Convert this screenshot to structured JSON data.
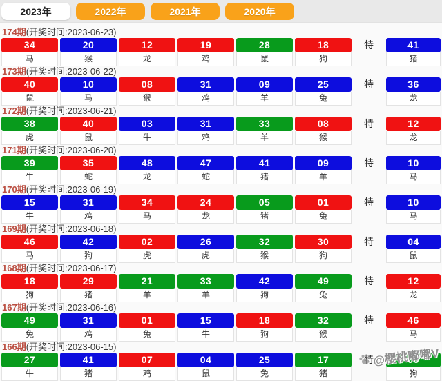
{
  "tabs": [
    {
      "label": "2023年",
      "active": true
    },
    {
      "label": "2022年",
      "active": false
    },
    {
      "label": "2021年",
      "active": false
    },
    {
      "label": "2020年",
      "active": false
    }
  ],
  "special_label": "特",
  "rows": [
    {
      "period": "174期",
      "time": "(开奖时间:2023-06-23)",
      "balls": [
        {
          "n": "34",
          "c": "red",
          "z": "马"
        },
        {
          "n": "20",
          "c": "blue",
          "z": "猴"
        },
        {
          "n": "12",
          "c": "red",
          "z": "龙"
        },
        {
          "n": "19",
          "c": "red",
          "z": "鸡"
        },
        {
          "n": "28",
          "c": "green",
          "z": "鼠"
        },
        {
          "n": "18",
          "c": "red",
          "z": "狗"
        }
      ],
      "special": {
        "n": "41",
        "c": "blue",
        "z": "猪"
      }
    },
    {
      "period": "173期",
      "time": "(开奖时间:2023-06-22)",
      "balls": [
        {
          "n": "40",
          "c": "red",
          "z": "鼠"
        },
        {
          "n": "10",
          "c": "blue",
          "z": "马"
        },
        {
          "n": "08",
          "c": "red",
          "z": "猴"
        },
        {
          "n": "31",
          "c": "blue",
          "z": "鸡"
        },
        {
          "n": "09",
          "c": "blue",
          "z": "羊"
        },
        {
          "n": "25",
          "c": "blue",
          "z": "兔"
        }
      ],
      "special": {
        "n": "36",
        "c": "blue",
        "z": "龙"
      }
    },
    {
      "period": "172期",
      "time": "(开奖时间:2023-06-21)",
      "balls": [
        {
          "n": "38",
          "c": "green",
          "z": "虎"
        },
        {
          "n": "40",
          "c": "red",
          "z": "鼠"
        },
        {
          "n": "03",
          "c": "blue",
          "z": "牛"
        },
        {
          "n": "31",
          "c": "blue",
          "z": "鸡"
        },
        {
          "n": "33",
          "c": "green",
          "z": "羊"
        },
        {
          "n": "08",
          "c": "red",
          "z": "猴"
        }
      ],
      "special": {
        "n": "12",
        "c": "red",
        "z": "龙"
      }
    },
    {
      "period": "171期",
      "time": "(开奖时间:2023-06-20)",
      "balls": [
        {
          "n": "39",
          "c": "green",
          "z": "牛"
        },
        {
          "n": "35",
          "c": "red",
          "z": "蛇"
        },
        {
          "n": "48",
          "c": "blue",
          "z": "龙"
        },
        {
          "n": "47",
          "c": "blue",
          "z": "蛇"
        },
        {
          "n": "41",
          "c": "blue",
          "z": "猪"
        },
        {
          "n": "09",
          "c": "blue",
          "z": "羊"
        }
      ],
      "special": {
        "n": "10",
        "c": "blue",
        "z": "马"
      }
    },
    {
      "period": "170期",
      "time": "(开奖时间:2023-06-19)",
      "balls": [
        {
          "n": "15",
          "c": "blue",
          "z": "牛"
        },
        {
          "n": "31",
          "c": "blue",
          "z": "鸡"
        },
        {
          "n": "34",
          "c": "red",
          "z": "马"
        },
        {
          "n": "24",
          "c": "red",
          "z": "龙"
        },
        {
          "n": "05",
          "c": "green",
          "z": "猪"
        },
        {
          "n": "01",
          "c": "red",
          "z": "兔"
        }
      ],
      "special": {
        "n": "10",
        "c": "blue",
        "z": "马"
      }
    },
    {
      "period": "169期",
      "time": "(开奖时间:2023-06-18)",
      "balls": [
        {
          "n": "46",
          "c": "red",
          "z": "马"
        },
        {
          "n": "42",
          "c": "blue",
          "z": "狗"
        },
        {
          "n": "02",
          "c": "red",
          "z": "虎"
        },
        {
          "n": "26",
          "c": "blue",
          "z": "虎"
        },
        {
          "n": "32",
          "c": "green",
          "z": "猴"
        },
        {
          "n": "30",
          "c": "red",
          "z": "狗"
        }
      ],
      "special": {
        "n": "04",
        "c": "blue",
        "z": "鼠"
      }
    },
    {
      "period": "168期",
      "time": "(开奖时间:2023-06-17)",
      "balls": [
        {
          "n": "18",
          "c": "red",
          "z": "狗"
        },
        {
          "n": "29",
          "c": "red",
          "z": "猪"
        },
        {
          "n": "21",
          "c": "green",
          "z": "羊"
        },
        {
          "n": "33",
          "c": "green",
          "z": "羊"
        },
        {
          "n": "42",
          "c": "blue",
          "z": "狗"
        },
        {
          "n": "49",
          "c": "green",
          "z": "兔"
        }
      ],
      "special": {
        "n": "12",
        "c": "red",
        "z": "龙"
      }
    },
    {
      "period": "167期",
      "time": "(开奖时间:2023-06-16)",
      "balls": [
        {
          "n": "49",
          "c": "green",
          "z": "兔"
        },
        {
          "n": "31",
          "c": "blue",
          "z": "鸡"
        },
        {
          "n": "01",
          "c": "red",
          "z": "兔"
        },
        {
          "n": "15",
          "c": "blue",
          "z": "牛"
        },
        {
          "n": "18",
          "c": "red",
          "z": "狗"
        },
        {
          "n": "32",
          "c": "green",
          "z": "猴"
        }
      ],
      "special": {
        "n": "46",
        "c": "red",
        "z": "马"
      }
    },
    {
      "period": "166期",
      "time": "(开奖时间:2023-06-15)",
      "balls": [
        {
          "n": "27",
          "c": "green",
          "z": "牛"
        },
        {
          "n": "41",
          "c": "blue",
          "z": "猪"
        },
        {
          "n": "07",
          "c": "red",
          "z": "鸡"
        },
        {
          "n": "04",
          "c": "blue",
          "z": "鼠"
        },
        {
          "n": "25",
          "c": "blue",
          "z": "兔"
        },
        {
          "n": "17",
          "c": "green",
          "z": "猪"
        }
      ],
      "special": {
        "n": "06",
        "c": "green",
        "z": "狗"
      }
    }
  ],
  "watermark": {
    "icon": "paw-icon",
    "handle": "@樱桃嘟嘟V"
  },
  "colors": {
    "red": "#f01212",
    "blue": "#0d0dde",
    "green": "#089b1c",
    "orange": "#f9a21a",
    "period_text": "#bb4f42"
  }
}
